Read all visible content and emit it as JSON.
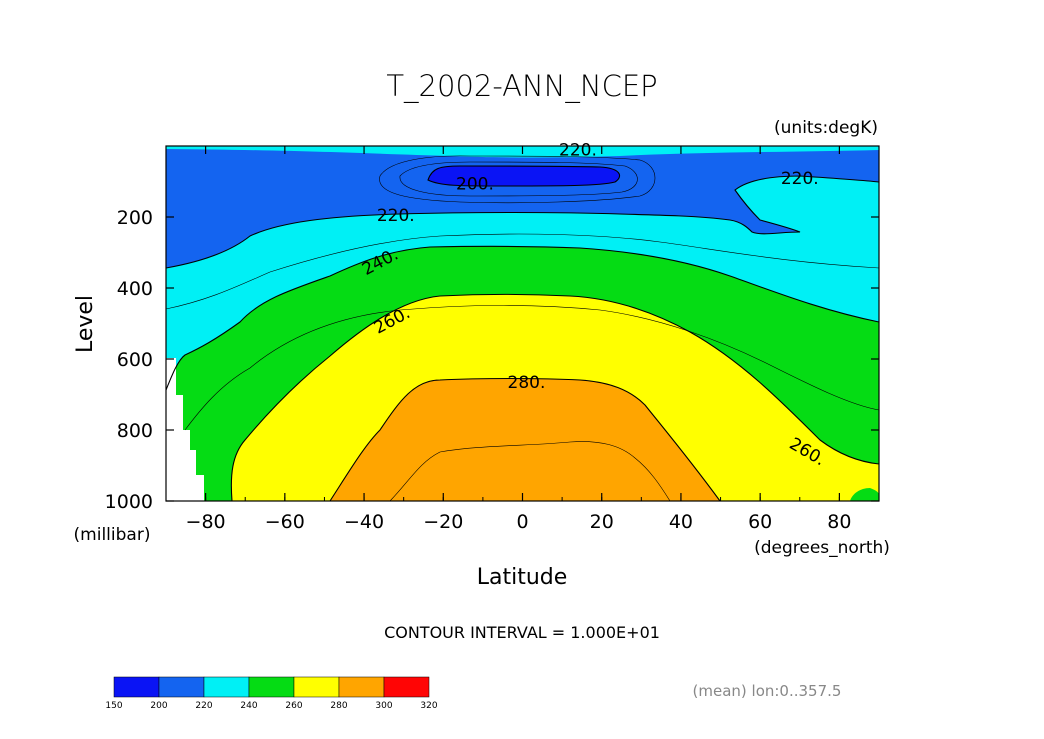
{
  "chart_data": {
    "type": "contour",
    "title": "T_2002-ANN_NCEP",
    "units_label": "(units:degK)",
    "xlabel": "Latitude",
    "x_units": "(degrees_north)",
    "ylabel": "Level",
    "y_units": "(millibar)",
    "xlim": [
      -90,
      90
    ],
    "ylim": [
      0,
      1000
    ],
    "y_inverted": true,
    "x_ticks": [
      "-80",
      "-60",
      "-40",
      "-20",
      "0",
      "20",
      "40",
      "60",
      "80"
    ],
    "y_ticks": [
      "200",
      "400",
      "600",
      "800",
      "1000"
    ],
    "contour_interval_text": "CONTOUR INTERVAL = 1.000E+01",
    "footnote": "(mean) lon:0..357.5",
    "contour_labels": [
      {
        "text": "220.",
        "lat": 14,
        "level": 10
      },
      {
        "text": "200.",
        "lat": -12,
        "level": 105
      },
      {
        "text": "220.",
        "lat": -32,
        "level": 195
      },
      {
        "text": "220.",
        "lat": 70,
        "level": 90
      },
      {
        "text": "240.",
        "lat": -36,
        "level": 325
      },
      {
        "text": "260.",
        "lat": -33,
        "level": 490
      },
      {
        "text": "280.",
        "lat": 1,
        "level": 665
      },
      {
        "text": "260.",
        "lat": 72,
        "level": 860
      }
    ],
    "colorbar": {
      "levels": [
        150,
        200,
        220,
        240,
        260,
        280,
        300,
        320
      ],
      "colors": [
        "#0a14f5",
        "#1464f0",
        "#00f0f5",
        "#05dc14",
        "#ffff00",
        "#ffa500",
        "#ff0505"
      ]
    }
  }
}
